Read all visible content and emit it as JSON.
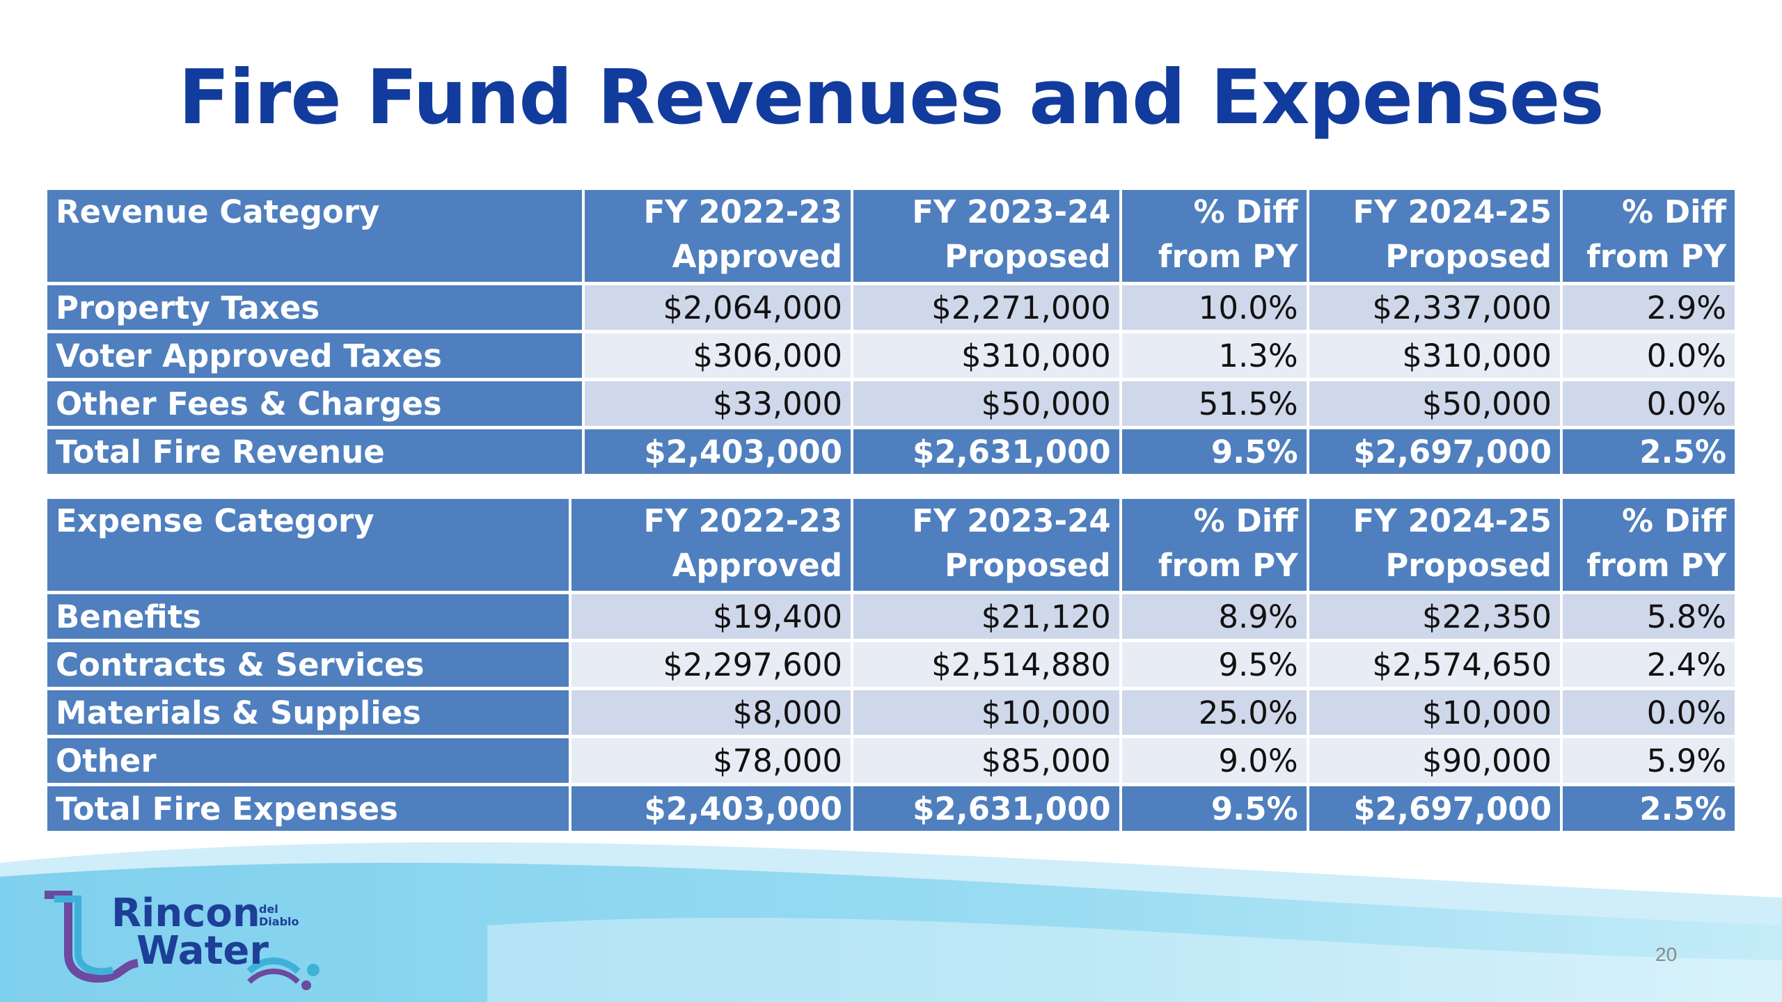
{
  "slide": {
    "title": "Fire Fund Revenues and Expenses",
    "page_number": "20"
  },
  "revenue_table": {
    "headers": [
      "Revenue Category",
      "FY 2022-23\nApproved",
      "FY 2023-24\nProposed",
      "% Diff\nfrom PY",
      "FY 2024-25\nProposed",
      "% Diff\nfrom PY"
    ],
    "header_lines": [
      [
        "Revenue Category",
        ""
      ],
      [
        "FY 2022-23",
        "Approved"
      ],
      [
        "FY 2023-24",
        "Proposed"
      ],
      [
        "% Diff",
        "from PY"
      ],
      [
        "FY 2024-25",
        "Proposed"
      ],
      [
        "% Diff",
        "from PY"
      ]
    ],
    "rows": [
      [
        "Property Taxes",
        "$2,064,000",
        "$2,271,000",
        "10.0%",
        "$2,337,000",
        "2.9%"
      ],
      [
        "Voter Approved Taxes",
        "$306,000",
        "$310,000",
        "1.3%",
        "$310,000",
        "0.0%"
      ],
      [
        "Other Fees & Charges",
        "$33,000",
        "$50,000",
        "51.5%",
        "$50,000",
        "0.0%"
      ]
    ],
    "total": [
      "Total Fire Revenue",
      "$2,403,000",
      "$2,631,000",
      "9.5%",
      "$2,697,000",
      "2.5%"
    ]
  },
  "expense_table": {
    "header_lines": [
      [
        "Expense Category",
        ""
      ],
      [
        "FY 2022-23",
        "Approved"
      ],
      [
        "FY 2023-24",
        "Proposed"
      ],
      [
        "% Diff",
        "from PY"
      ],
      [
        "FY 2024-25",
        "Proposed"
      ],
      [
        "% Diff",
        "from PY"
      ]
    ],
    "rows": [
      [
        "Benefits",
        "$19,400",
        "$21,120",
        "8.9%",
        "$22,350",
        "5.8%"
      ],
      [
        "Contracts & Services",
        "$2,297,600",
        "$2,514,880",
        "9.5%",
        "$2,574,650",
        "2.4%"
      ],
      [
        "Materials & Supplies",
        "$8,000",
        "$10,000",
        "25.0%",
        "$10,000",
        "0.0%"
      ],
      [
        "Other",
        "$78,000",
        "$85,000",
        "9.0%",
        "$90,000",
        "5.9%"
      ]
    ],
    "total": [
      "Total Fire Expenses",
      "$2,403,000",
      "$2,631,000",
      "9.5%",
      "$2,697,000",
      "2.5%"
    ]
  },
  "logo": {
    "line1": "Rincon",
    "line2": "Water",
    "small1": "del",
    "small2": "Diablo"
  },
  "colors": {
    "title": "#123b9e",
    "header_fill": "#4f7fbe",
    "row_odd": "#cfd7ea",
    "row_even": "#e8ecf5",
    "footer_wave": "#8fd6ef"
  }
}
